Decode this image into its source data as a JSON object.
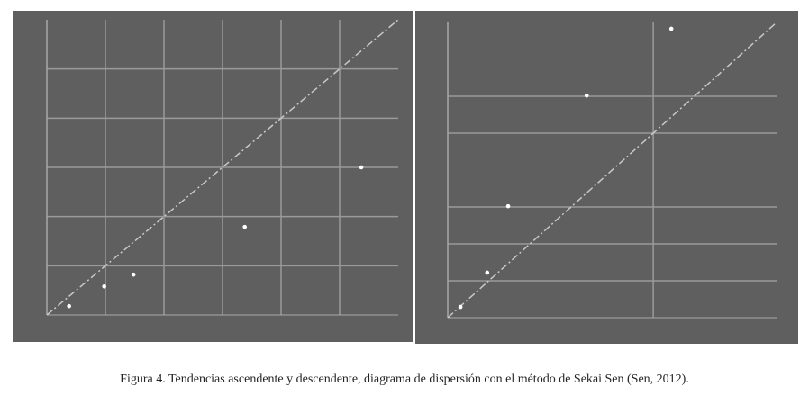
{
  "chart_data": [
    {
      "type": "scatter",
      "color": "#ffffff",
      "grid": true,
      "x": [
        0.38,
        0.98,
        1.48,
        3.38,
        5.37
      ],
      "values": [
        0.18,
        0.58,
        0.82,
        1.79,
        3.0
      ],
      "xlim": [
        0,
        6
      ],
      "ylim": [
        0,
        6
      ],
      "xticks": [
        1,
        2,
        3,
        4,
        5
      ],
      "yticks": [
        1,
        2,
        3,
        4,
        5
      ]
    },
    {
      "type": "scatter",
      "color": "#ffffff",
      "grid": true,
      "x": [
        0.31,
        0.96,
        1.47,
        3.38,
        5.44
      ],
      "values": [
        0.29,
        1.22,
        3.02,
        6.02,
        7.83
      ],
      "xlim": [
        0,
        8
      ],
      "ylim": [
        0,
        8
      ],
      "xticks": [
        5
      ],
      "yticks": [
        1,
        2,
        3,
        5,
        6
      ]
    }
  ],
  "caption": "Figura 4. Tendencias ascendente y descendente, diagrama de dispersión con el método de Sekai Sen (Sen, 2012)."
}
